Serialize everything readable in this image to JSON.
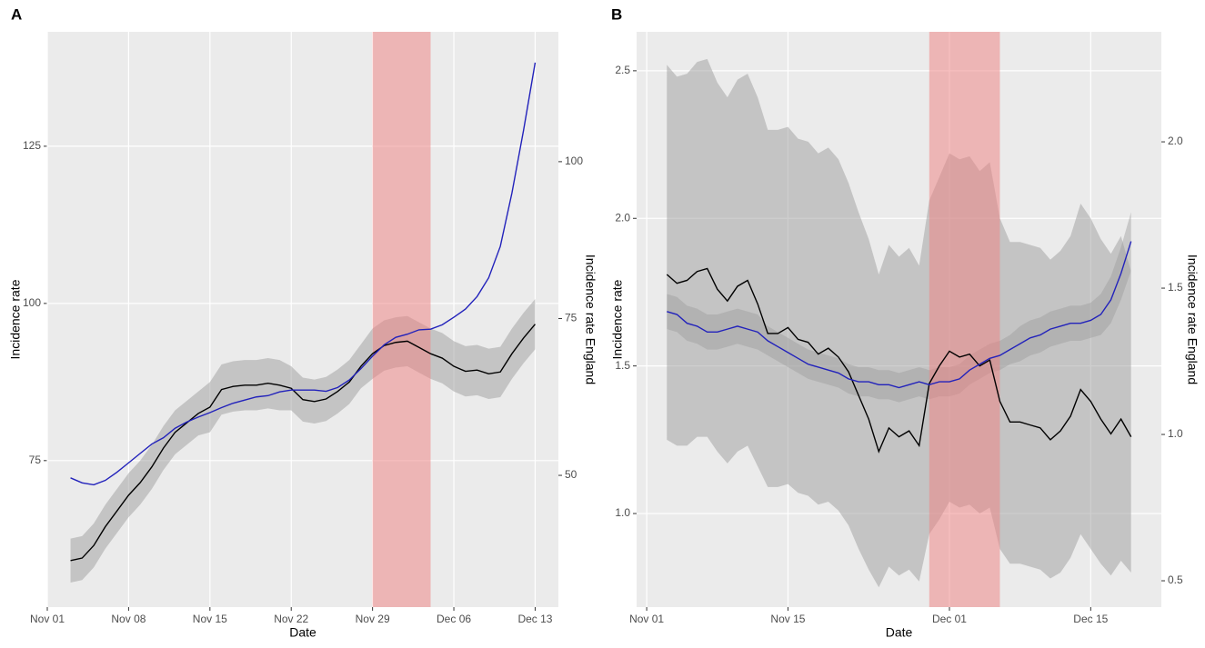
{
  "chart_data": [
    {
      "type": "line",
      "label": "A",
      "xlabel": "Date",
      "ylabel": "Incidence rate",
      "y2label": "Incidence rate England",
      "xlim": [
        "Nov 01",
        "Dec 15"
      ],
      "xticks": [
        "Nov 01",
        "Nov 08",
        "Nov 15",
        "Nov 22",
        "Nov 29",
        "Dec 06",
        "Dec 13"
      ],
      "ylim": [
        51.7,
        143.2
      ],
      "yticks": [
        75,
        100,
        125
      ],
      "y2lim": [
        29,
        120.7
      ],
      "y2ticks": [
        50,
        75,
        100
      ],
      "grid": true,
      "band_color": "#9e9e9e",
      "shade": [
        "Nov 29",
        "Dec 04"
      ],
      "shade_color": "#f08080",
      "x": [
        "Nov 03",
        "Nov 04",
        "Nov 05",
        "Nov 06",
        "Nov 07",
        "Nov 08",
        "Nov 09",
        "Nov 10",
        "Nov 11",
        "Nov 12",
        "Nov 13",
        "Nov 14",
        "Nov 15",
        "Nov 16",
        "Nov 17",
        "Nov 18",
        "Nov 19",
        "Nov 20",
        "Nov 21",
        "Nov 22",
        "Nov 23",
        "Nov 24",
        "Nov 25",
        "Nov 26",
        "Nov 27",
        "Nov 28",
        "Nov 29",
        "Nov 30",
        "Dec 01",
        "Dec 02",
        "Dec 03",
        "Dec 04",
        "Dec 05",
        "Dec 06",
        "Dec 07",
        "Dec 08",
        "Dec 09",
        "Dec 10",
        "Dec 11",
        "Dec 12",
        "Dec 13"
      ],
      "series": [
        {
          "color": "#000000",
          "axis": "y",
          "values": [
            59.1,
            59.5,
            61.5,
            64.5,
            67,
            69.5,
            71.5,
            74,
            77,
            79.5,
            81,
            82.5,
            83.5,
            86.3,
            86.8,
            87,
            87,
            87.3,
            87,
            86.5,
            84.7,
            84.4,
            84.8,
            86,
            87.5,
            90,
            92,
            93.3,
            93.8,
            94,
            93,
            92,
            91.3,
            90,
            89.2,
            89.4,
            88.8,
            89.1,
            92,
            94.5,
            96.7
          ],
          "lower": [
            55.6,
            56,
            58,
            61,
            63.5,
            66,
            68,
            70.5,
            73.5,
            76,
            77.5,
            79,
            79.5,
            82.3,
            82.8,
            83,
            83,
            83.3,
            83,
            83,
            81.2,
            80.9,
            81.3,
            82.5,
            84,
            86.5,
            88,
            89.3,
            89.8,
            90,
            89,
            88,
            87.3,
            86,
            85.2,
            85.4,
            84.8,
            85.1,
            88,
            90.5,
            92.7
          ],
          "upper": [
            62.6,
            63,
            65,
            68,
            70.5,
            73,
            75,
            77.5,
            80.5,
            83,
            84.5,
            86,
            87.5,
            90.3,
            90.8,
            91,
            91,
            91.3,
            91,
            90,
            88.2,
            87.9,
            88.3,
            89.5,
            91,
            93.5,
            96,
            97.3,
            97.8,
            98,
            97,
            96,
            95.3,
            94,
            93.2,
            93.4,
            92.8,
            93.1,
            96,
            98.5,
            100.7
          ]
        },
        {
          "color": "#2222bb",
          "axis": "y2",
          "values": [
            49.6,
            48.8,
            48.5,
            49.2,
            50.5,
            52,
            53.5,
            55,
            56,
            57.5,
            58.5,
            59.3,
            60,
            60.8,
            61.5,
            62,
            62.5,
            62.7,
            63.3,
            63.6,
            63.6,
            63.6,
            63.4,
            64,
            65.2,
            67,
            69,
            70.8,
            72,
            72.5,
            73.2,
            73.3,
            74,
            75.2,
            76.5,
            78.5,
            81.5,
            86.5,
            95,
            105,
            115.8
          ]
        }
      ]
    },
    {
      "type": "line",
      "label": "B",
      "xlabel": "Date",
      "ylabel": "Incidence rate",
      "y2label": "Incidence rate England",
      "xlim": [
        "Oct 31",
        "Dec 22"
      ],
      "xticks": [
        "Nov 01",
        "Nov 15",
        "Dec 01",
        "Dec 15"
      ],
      "ylim": [
        0.683,
        2.632
      ],
      "yticks": [
        {
          "value": 1,
          "label": "1.0"
        },
        1.5,
        {
          "value": 2,
          "label": "2.0"
        },
        2.5
      ],
      "y2lim": [
        0.41,
        2.376
      ],
      "y2ticks": [
        0.5,
        {
          "value": 1,
          "label": "1.0"
        },
        1.5,
        {
          "value": 2,
          "label": "2.0"
        }
      ],
      "grid": true,
      "band_color": "#9e9e9e",
      "shade": [
        "Nov 29",
        "Dec 06"
      ],
      "shade_color": "#f08080",
      "x": [
        "Nov 03",
        "Nov 04",
        "Nov 05",
        "Nov 06",
        "Nov 07",
        "Nov 08",
        "Nov 09",
        "Nov 10",
        "Nov 11",
        "Nov 12",
        "Nov 13",
        "Nov 14",
        "Nov 15",
        "Nov 16",
        "Nov 17",
        "Nov 18",
        "Nov 19",
        "Nov 20",
        "Nov 21",
        "Nov 22",
        "Nov 23",
        "Nov 24",
        "Nov 25",
        "Nov 26",
        "Nov 27",
        "Nov 28",
        "Nov 29",
        "Nov 30",
        "Dec 01",
        "Dec 02",
        "Dec 03",
        "Dec 04",
        "Dec 05",
        "Dec 06",
        "Dec 07",
        "Dec 08",
        "Dec 09",
        "Dec 10",
        "Dec 11",
        "Dec 12",
        "Dec 13",
        "Dec 14",
        "Dec 15",
        "Dec 16",
        "Dec 17",
        "Dec 18",
        "Dec 19"
      ],
      "series": [
        {
          "color": "#000000",
          "axis": "y",
          "values": [
            1.81,
            1.78,
            1.79,
            1.82,
            1.83,
            1.76,
            1.72,
            1.77,
            1.79,
            1.71,
            1.61,
            1.61,
            1.63,
            1.59,
            1.58,
            1.54,
            1.56,
            1.53,
            1.48,
            1.4,
            1.32,
            1.21,
            1.29,
            1.26,
            1.28,
            1.23,
            1.44,
            1.5,
            1.55,
            1.53,
            1.54,
            1.5,
            1.52,
            1.38,
            1.31,
            1.31,
            1.3,
            1.29,
            1.25,
            1.28,
            1.33,
            1.42,
            1.38,
            1.32,
            1.27,
            1.32,
            1.26
          ],
          "lower": [
            1.25,
            1.23,
            1.23,
            1.26,
            1.26,
            1.21,
            1.17,
            1.21,
            1.23,
            1.16,
            1.09,
            1.09,
            1.1,
            1.07,
            1.06,
            1.03,
            1.04,
            1.01,
            0.96,
            0.88,
            0.81,
            0.75,
            0.82,
            0.79,
            0.81,
            0.77,
            0.93,
            0.98,
            1.04,
            1.02,
            1.03,
            1.0,
            1.02,
            0.88,
            0.83,
            0.83,
            0.82,
            0.81,
            0.78,
            0.8,
            0.85,
            0.93,
            0.88,
            0.83,
            0.79,
            0.84,
            0.8
          ],
          "upper": [
            2.52,
            2.48,
            2.49,
            2.53,
            2.54,
            2.46,
            2.41,
            2.47,
            2.49,
            2.41,
            2.3,
            2.3,
            2.31,
            2.27,
            2.26,
            2.22,
            2.24,
            2.2,
            2.12,
            2.02,
            1.93,
            1.81,
            1.91,
            1.87,
            1.9,
            1.84,
            2.06,
            2.14,
            2.22,
            2.2,
            2.21,
            2.16,
            2.19,
            2.0,
            1.92,
            1.92,
            1.91,
            1.9,
            1.86,
            1.89,
            1.94,
            2.05,
            2.0,
            1.93,
            1.88,
            1.94,
            1.82
          ]
        },
        {
          "color": "#2222bb",
          "axis": "y2",
          "values": [
            1.42,
            1.41,
            1.38,
            1.37,
            1.35,
            1.35,
            1.36,
            1.37,
            1.36,
            1.35,
            1.32,
            1.3,
            1.28,
            1.26,
            1.24,
            1.23,
            1.22,
            1.21,
            1.19,
            1.18,
            1.18,
            1.17,
            1.17,
            1.16,
            1.17,
            1.18,
            1.17,
            1.18,
            1.18,
            1.19,
            1.22,
            1.24,
            1.26,
            1.27,
            1.29,
            1.31,
            1.33,
            1.34,
            1.36,
            1.37,
            1.38,
            1.38,
            1.39,
            1.41,
            1.46,
            1.55,
            1.66
          ],
          "lower": [
            1.36,
            1.35,
            1.32,
            1.31,
            1.29,
            1.29,
            1.3,
            1.31,
            1.3,
            1.29,
            1.27,
            1.25,
            1.23,
            1.21,
            1.19,
            1.18,
            1.17,
            1.16,
            1.14,
            1.13,
            1.13,
            1.12,
            1.12,
            1.11,
            1.12,
            1.13,
            1.12,
            1.13,
            1.13,
            1.14,
            1.17,
            1.19,
            1.21,
            1.22,
            1.24,
            1.25,
            1.27,
            1.28,
            1.3,
            1.31,
            1.32,
            1.32,
            1.33,
            1.34,
            1.38,
            1.46,
            1.56
          ],
          "upper": [
            1.48,
            1.47,
            1.44,
            1.43,
            1.41,
            1.41,
            1.42,
            1.43,
            1.42,
            1.41,
            1.37,
            1.35,
            1.33,
            1.31,
            1.29,
            1.28,
            1.27,
            1.26,
            1.24,
            1.23,
            1.23,
            1.22,
            1.22,
            1.21,
            1.22,
            1.23,
            1.22,
            1.23,
            1.23,
            1.24,
            1.27,
            1.29,
            1.31,
            1.32,
            1.34,
            1.37,
            1.39,
            1.4,
            1.42,
            1.43,
            1.44,
            1.44,
            1.45,
            1.48,
            1.54,
            1.64,
            1.76
          ]
        }
      ]
    }
  ]
}
